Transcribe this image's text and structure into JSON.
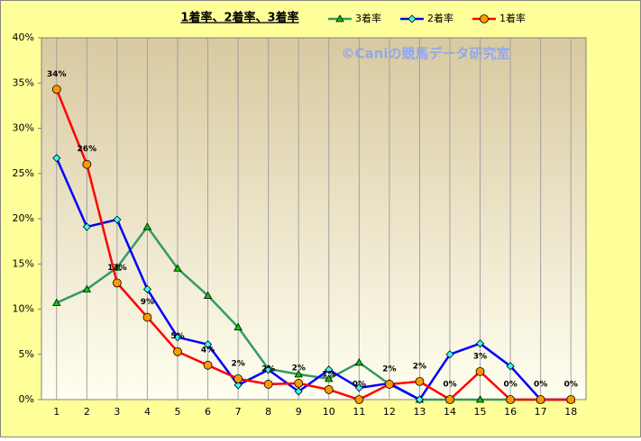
{
  "chart_data": {
    "type": "line",
    "title": "1着率、2着率、3着率",
    "annotation": "©Caniの競馬データ研究室",
    "categories": [
      "1",
      "2",
      "3",
      "4",
      "5",
      "6",
      "7",
      "8",
      "9",
      "10",
      "11",
      "12",
      "13",
      "14",
      "15",
      "16",
      "17",
      "18"
    ],
    "ylim": [
      0,
      40
    ],
    "yticks": [
      {
        "value": 0,
        "label": "0%"
      },
      {
        "value": 5,
        "label": "5%"
      },
      {
        "value": 10,
        "label": "10%"
      },
      {
        "value": 15,
        "label": "15%"
      },
      {
        "value": 20,
        "label": "20%"
      },
      {
        "value": 25,
        "label": "25%"
      },
      {
        "value": 30,
        "label": "30%"
      },
      {
        "value": 35,
        "label": "35%"
      },
      {
        "value": 40,
        "label": "40%"
      }
    ],
    "grid": true,
    "series": [
      {
        "name": "3着率",
        "color": "#339966",
        "marker": "triangle",
        "marker_color": "#00cc00",
        "values": [
          10.7,
          12.2,
          14.6,
          19.1,
          14.5,
          11.5,
          8.0,
          3.4,
          2.8,
          2.3,
          4.1,
          1.7,
          0,
          0,
          0,
          0,
          0,
          0
        ]
      },
      {
        "name": "2着率",
        "color": "#0000ff",
        "marker": "diamond",
        "marker_color": "#33ffff",
        "values": [
          26.7,
          19.1,
          19.9,
          12.2,
          6.9,
          6.1,
          1.6,
          3.3,
          0.9,
          3.3,
          1.3,
          1.8,
          0,
          5.0,
          6.2,
          3.7,
          0,
          0
        ]
      },
      {
        "name": "1着率",
        "color": "#ff0000",
        "marker": "circle",
        "marker_color": "#ff9900",
        "values": [
          34.3,
          26.0,
          12.9,
          9.1,
          5.3,
          3.8,
          2.3,
          1.7,
          1.8,
          1.1,
          0,
          1.7,
          2.0,
          0,
          3.1,
          0,
          0,
          0
        ],
        "value_labels": [
          "34%",
          "26%",
          "13%",
          "9%",
          "5%",
          "4%",
          "2%",
          "2%",
          "2%",
          "1%",
          "0%",
          "2%",
          "2%",
          "0%",
          "3%",
          "0%",
          "0%",
          "0%"
        ]
      }
    ]
  }
}
